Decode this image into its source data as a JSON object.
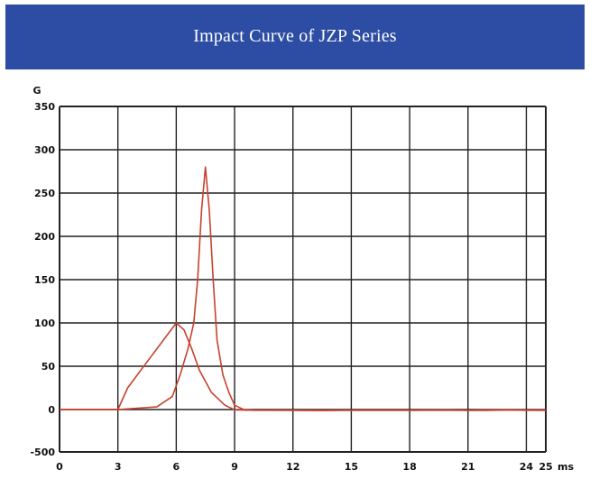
{
  "header": {
    "title": "Impact Curve of JZP Series",
    "background": "#2c4da3"
  },
  "chart_data": {
    "type": "line",
    "title": "Impact Curve of JZP Series",
    "ylabel": "G",
    "xlabel": "ms",
    "xlim": [
      0,
      25
    ],
    "ylim": [
      -500,
      350
    ],
    "x_ticks": [
      0,
      3,
      6,
      9,
      12,
      15,
      18,
      21,
      24,
      25
    ],
    "y_ticks": [
      -500,
      0,
      50,
      100,
      150,
      200,
      250,
      300,
      350
    ],
    "x_tick_labels": [
      "0",
      "3",
      "6",
      "9",
      "12",
      "15",
      "18",
      "21",
      "24",
      "25"
    ],
    "y_tick_labels": [
      "-500",
      "0",
      "50",
      "100",
      "150",
      "200",
      "250",
      "300",
      "350"
    ],
    "grid": true,
    "line_color": "#c8412e",
    "series": [
      {
        "x": [
          0,
          3,
          3.5,
          4.5,
          5.5,
          6.0,
          6.4,
          6.8,
          7.2,
          7.8,
          8.5,
          9.0,
          10.0,
          12.0,
          13.5,
          15.0,
          18.0,
          21.0,
          22.0,
          24.0,
          25.0
        ],
        "values": [
          0,
          0,
          25,
          55,
          85,
          100,
          92,
          70,
          45,
          20,
          5,
          -3,
          -8,
          -9,
          -10,
          -9,
          -9,
          -8,
          -6,
          -5,
          -6
        ]
      },
      {
        "x": [
          0,
          3,
          5,
          5.8,
          6.2,
          6.6,
          6.9,
          7.1,
          7.3,
          7.5,
          7.7,
          7.9,
          8.1,
          8.4,
          8.7,
          9.0,
          9.5,
          10.0,
          12.0,
          13.5,
          15.0,
          18.0,
          20.0,
          21.0,
          22.0,
          23.0,
          24.0,
          25.0
        ],
        "values": [
          0,
          0,
          3,
          15,
          40,
          70,
          100,
          150,
          230,
          280,
          230,
          150,
          80,
          40,
          20,
          5,
          -3,
          -7,
          -9,
          -12,
          -8,
          -9,
          -6,
          -10,
          -10,
          -5,
          -8,
          -10
        ]
      }
    ]
  }
}
